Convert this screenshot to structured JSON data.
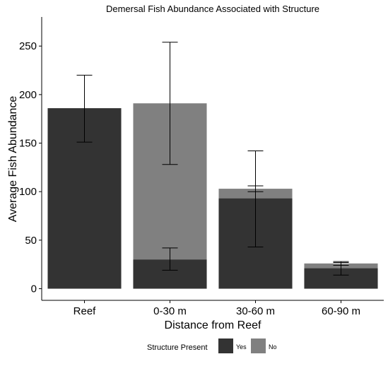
{
  "chart_data": {
    "type": "bar",
    "title": "Demersal Fish Abundance Associated with Structure",
    "xlabel": "Distance from Reef",
    "ylabel": "Average Fish Abundance",
    "categories": [
      "Reef",
      "0-30 m",
      "30-60 m",
      "60-90 m"
    ],
    "ylim": [
      -12,
      280
    ],
    "yticks": [
      0,
      50,
      100,
      150,
      200,
      250
    ],
    "grid": false,
    "legend": {
      "title": "Structure Present",
      "placement": "bottom"
    },
    "series": [
      {
        "name": "Yes",
        "color": "#333333",
        "values": [
          186,
          30,
          93,
          21
        ],
        "error_low": [
          151,
          19,
          43,
          14
        ],
        "error_high": [
          220,
          42,
          142,
          28
        ]
      },
      {
        "name": "No",
        "color": "#808080",
        "values": [
          null,
          191,
          103,
          26
        ],
        "error_low": [
          null,
          128,
          100,
          24
        ],
        "error_high": [
          null,
          254,
          106,
          27
        ]
      }
    ]
  }
}
